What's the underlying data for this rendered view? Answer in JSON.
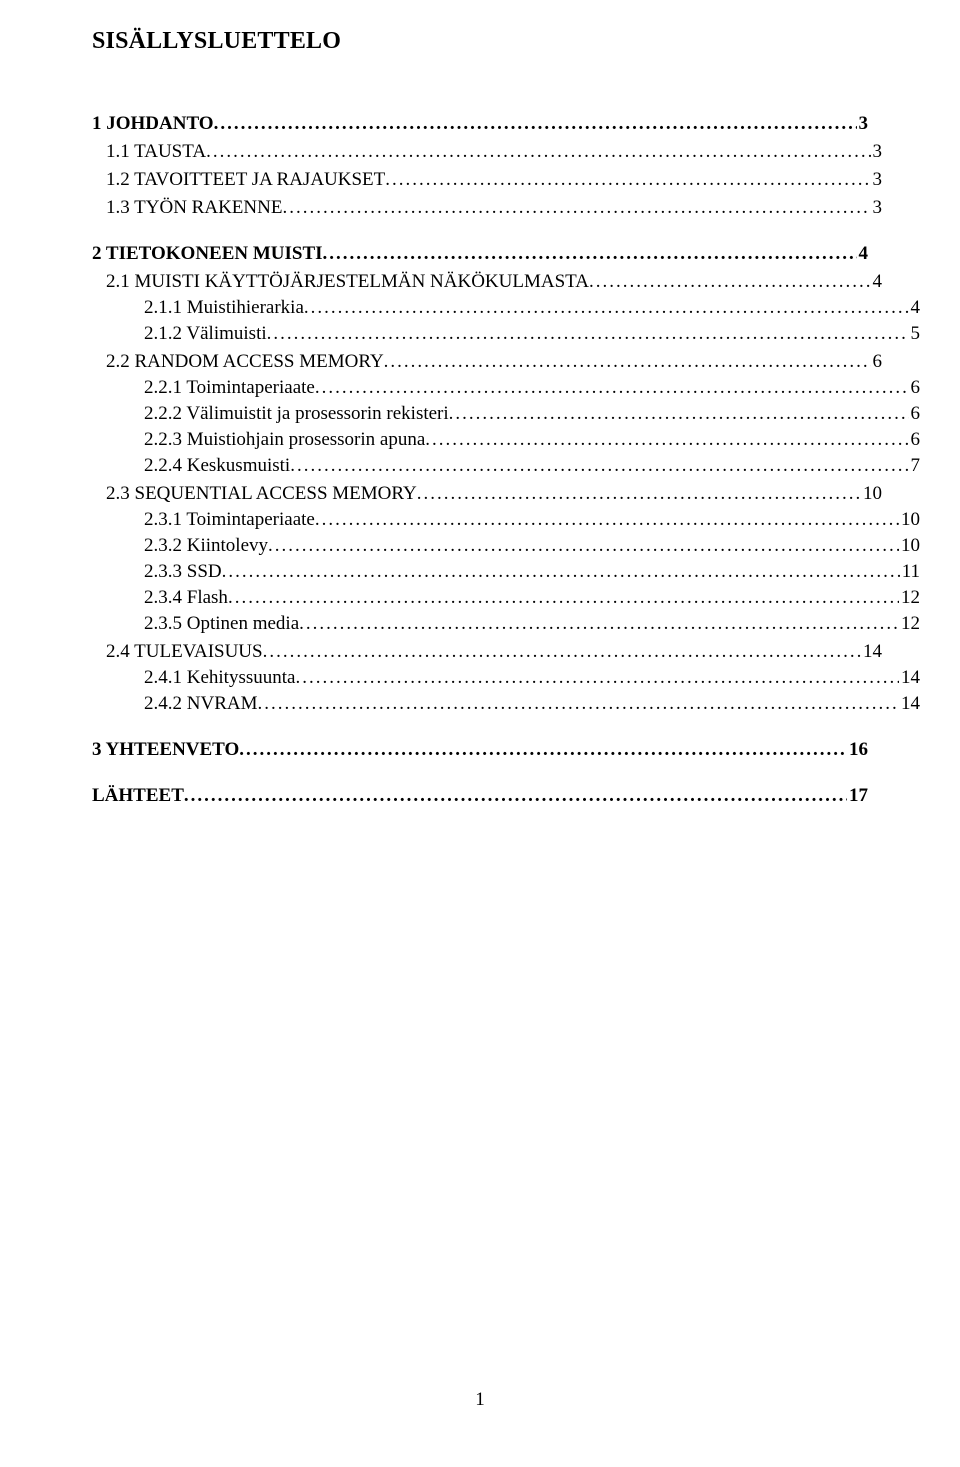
{
  "heading": "SISÄLLYSLUETTELO",
  "page_number": "1",
  "toc": [
    {
      "level": 1,
      "label": "1 JOHDANTO",
      "page": "3",
      "first": true
    },
    {
      "level": 2,
      "label": "1.1 TAUSTA",
      "page": "3"
    },
    {
      "level": 2,
      "label": "1.2 TAVOITTEET JA RAJAUKSET",
      "page": "3"
    },
    {
      "level": 2,
      "label": "1.3 TYÖN RAKENNE",
      "page": "3"
    },
    {
      "level": 1,
      "label": "2 TIETOKONEEN MUISTI",
      "page": "4"
    },
    {
      "level": 2,
      "label": "2.1 MUISTI KÄYTTÖJÄRJESTELMÄN NÄKÖKULMASTA",
      "page": "4"
    },
    {
      "level": 3,
      "label": "2.1.1 Muistihierarkia",
      "page": "4"
    },
    {
      "level": 3,
      "label": "2.1.2 Välimuisti",
      "page": "5"
    },
    {
      "level": 2,
      "label": "2.2 RANDOM ACCESS MEMORY",
      "page": "6"
    },
    {
      "level": 3,
      "label": "2.2.1 Toimintaperiaate",
      "page": "6"
    },
    {
      "level": 3,
      "label": "2.2.2 Välimuistit ja prosessorin rekisteri",
      "page": "6"
    },
    {
      "level": 3,
      "label": "2.2.3 Muistiohjain prosessorin apuna",
      "page": "6"
    },
    {
      "level": 3,
      "label": "2.2.4 Keskusmuisti",
      "page": "7"
    },
    {
      "level": 2,
      "label": "2.3 SEQUENTIAL ACCESS MEMORY",
      "page": "10"
    },
    {
      "level": 3,
      "label": "2.3.1 Toimintaperiaate",
      "page": "10"
    },
    {
      "level": 3,
      "label": "2.3.2 Kiintolevy",
      "page": "10"
    },
    {
      "level": 3,
      "label": "2.3.3 SSD",
      "page": "11"
    },
    {
      "level": 3,
      "label": "2.3.4 Flash",
      "page": "12"
    },
    {
      "level": 3,
      "label": "2.3.5 Optinen media",
      "page": "12"
    },
    {
      "level": 2,
      "label": "2.4 TULEVAISUUS",
      "page": "14"
    },
    {
      "level": 3,
      "label": "2.4.1 Kehityssuunta",
      "page": "14"
    },
    {
      "level": 3,
      "label": "2.4.2 NVRAM",
      "page": "14"
    },
    {
      "level": 1,
      "label": "3 YHTEENVETO",
      "page": "16"
    },
    {
      "level": 1,
      "label": "LÄHTEET",
      "page": "17",
      "leading_space": true
    }
  ]
}
